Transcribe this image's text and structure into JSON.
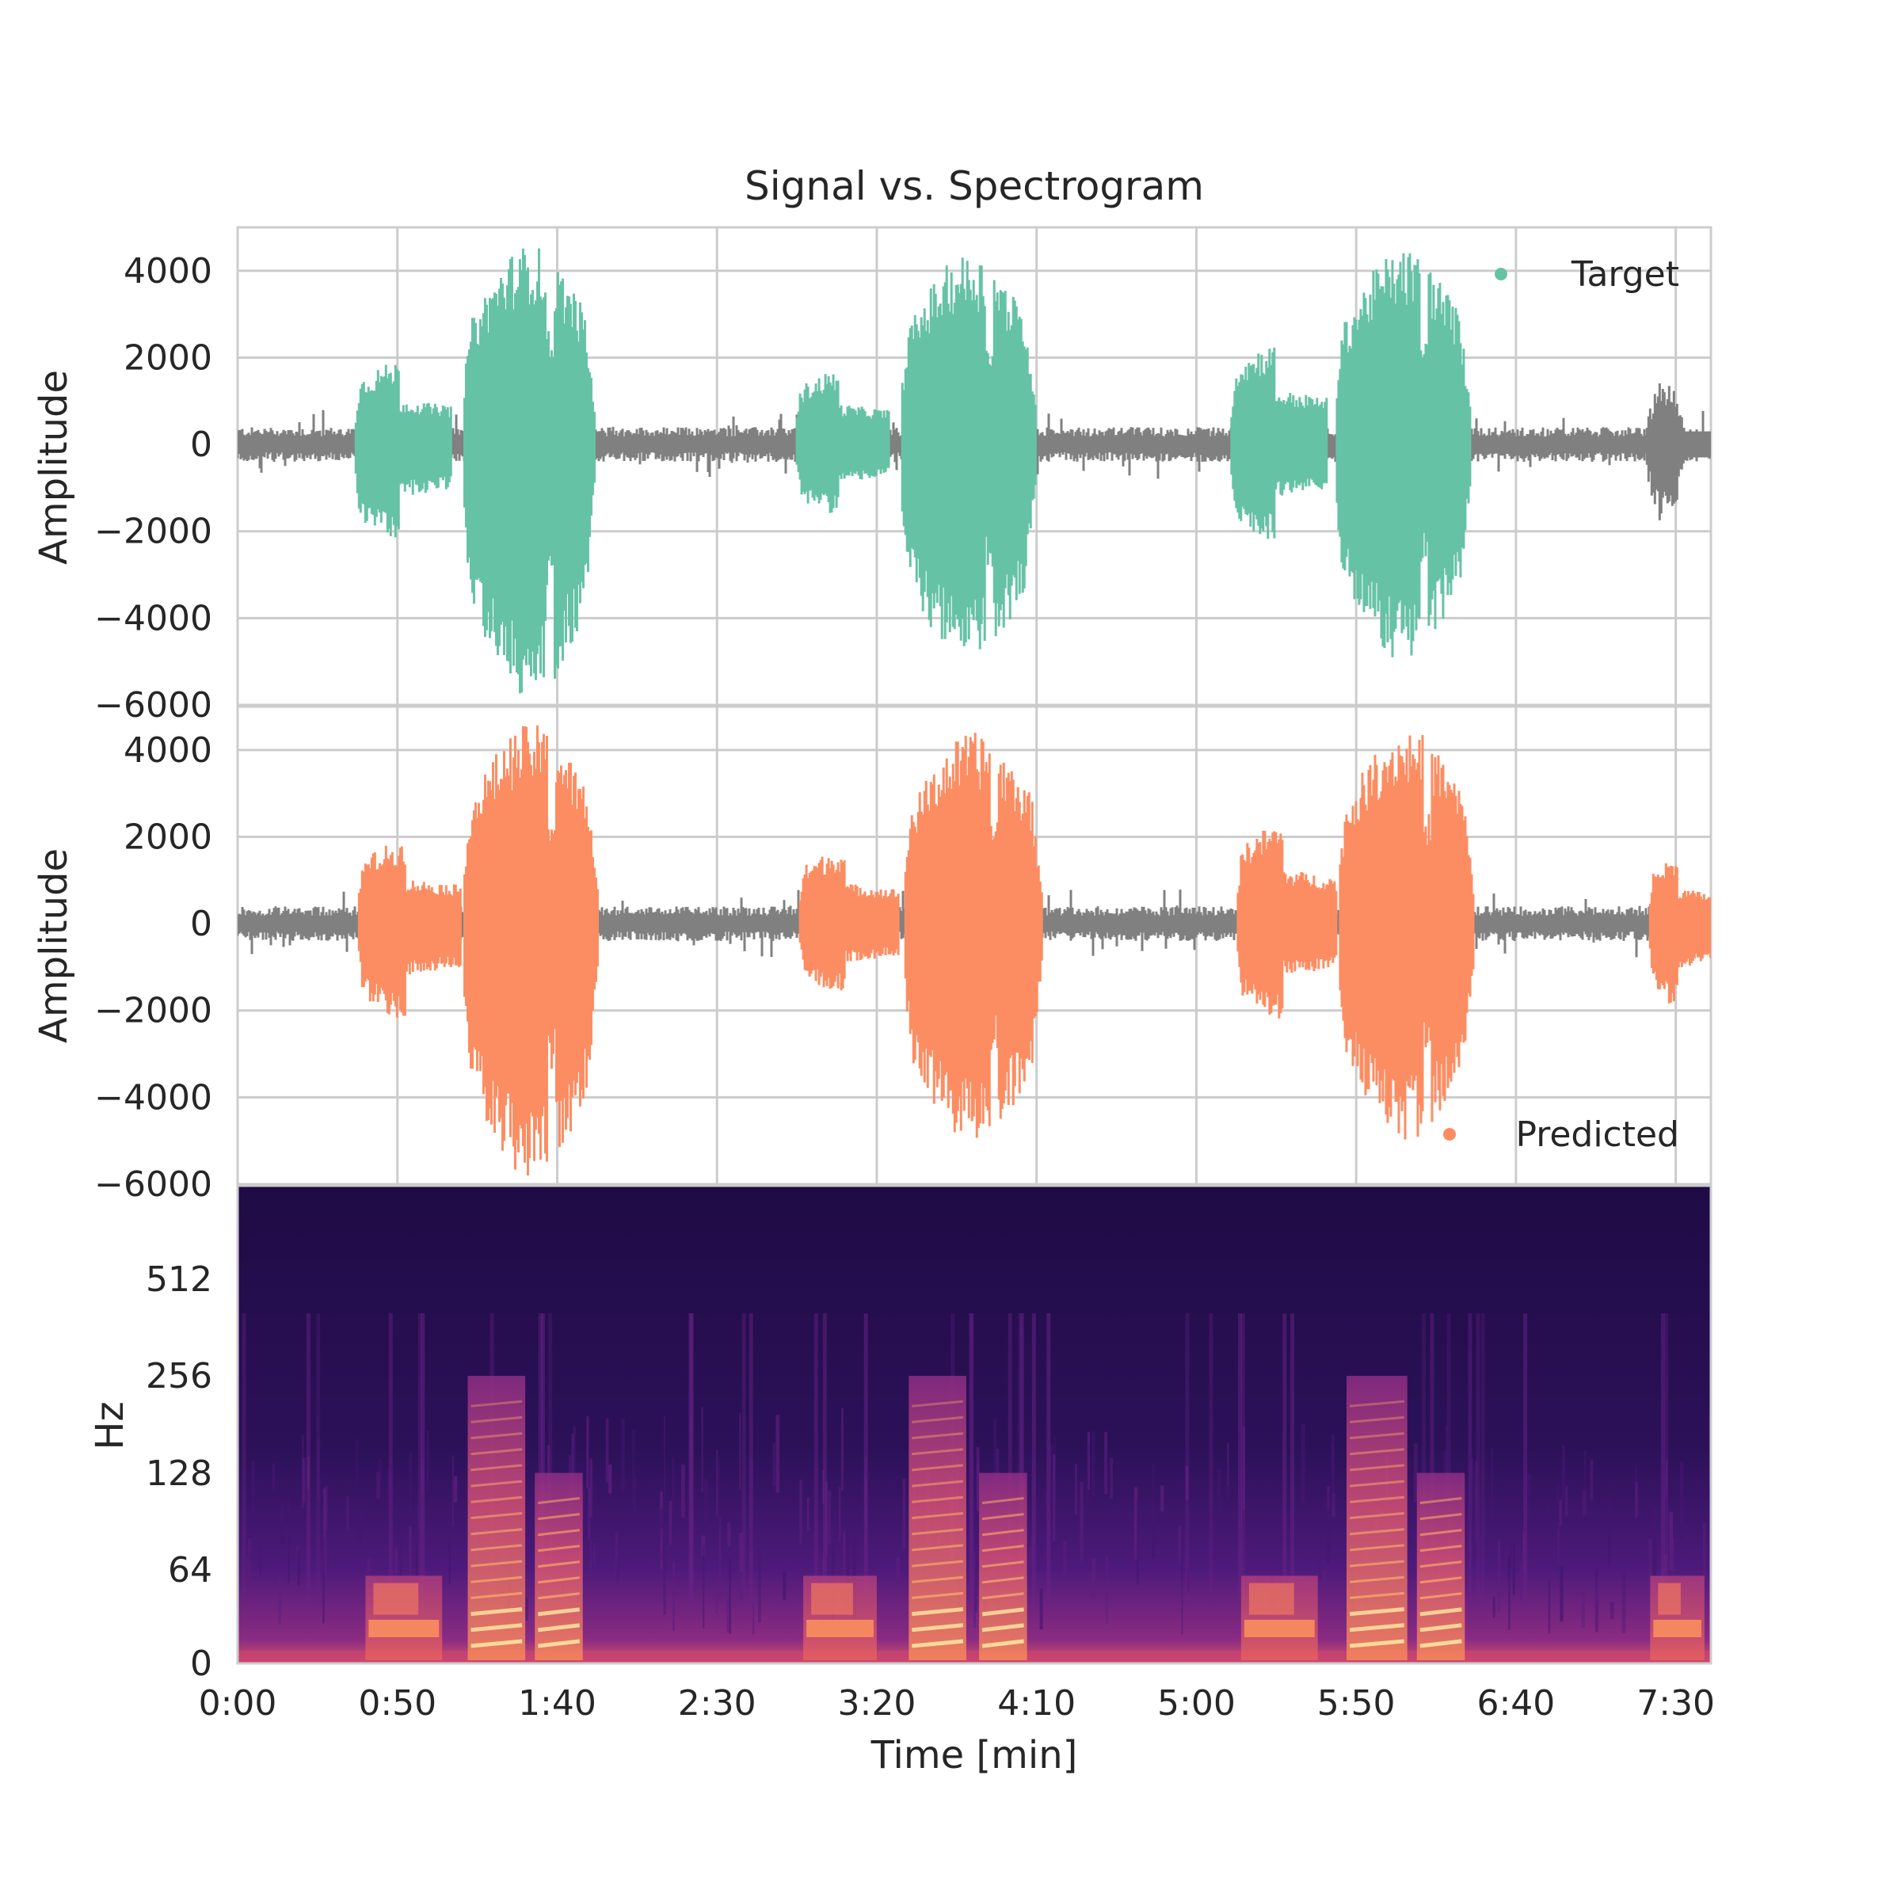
{
  "chart_data": {
    "type": "line",
    "title": "Signal vs. Spectrogram",
    "xlabel": "Time [min]",
    "x_ticks": [
      "0:00",
      "0:50",
      "1:40",
      "2:30",
      "3:20",
      "4:10",
      "5:00",
      "5:50",
      "6:40",
      "7:30"
    ],
    "xlim_seconds": [
      0,
      461
    ],
    "grid": true,
    "panels": [
      {
        "type": "line",
        "ylabel": "Amplitude",
        "ylim": [
          -6000,
          5000
        ],
        "y_ticks": [
          4000,
          2000,
          0,
          -2000,
          -4000,
          -6000
        ],
        "legend": {
          "label": "Target",
          "placement": "top-right",
          "color": "#66c2a5"
        },
        "background_color": "#808080",
        "highlight_color": "#66c2a5",
        "background_noise_amplitude": 400,
        "segments": [
          {
            "start": 37,
            "end": 67,
            "max": 1900,
            "min": -2200
          },
          {
            "start": 71,
            "end": 112,
            "max": 4600,
            "min": -5900
          },
          {
            "start": 175,
            "end": 204,
            "max": 1700,
            "min": -1600
          },
          {
            "start": 208,
            "end": 250,
            "max": 4400,
            "min": -5100
          },
          {
            "start": 311,
            "end": 341,
            "max": 2300,
            "min": -2200
          },
          {
            "start": 344,
            "end": 386,
            "max": 4500,
            "min": -5000
          }
        ],
        "tail_segment": {
          "start": 441,
          "end": 461,
          "max": 1500,
          "min": -1900
        }
      },
      {
        "type": "line",
        "ylabel": "Amplitude",
        "ylim": [
          -6000,
          5000
        ],
        "y_ticks": [
          4000,
          2000,
          0,
          -2000,
          -4000,
          -6000
        ],
        "legend": {
          "label": "Predicted",
          "placement": "bottom-right",
          "color": "#fc8d62"
        },
        "background_color": "#808080",
        "highlight_color": "#fc8d62",
        "background_noise_amplitude": 400,
        "segments": [
          {
            "start": 38,
            "end": 70,
            "max": 1900,
            "min": -2200
          },
          {
            "start": 71,
            "end": 113,
            "max": 4600,
            "min": -5900
          },
          {
            "start": 176,
            "end": 207,
            "max": 1700,
            "min": -1600
          },
          {
            "start": 209,
            "end": 252,
            "max": 4400,
            "min": -5100
          },
          {
            "start": 313,
            "end": 344,
            "max": 2300,
            "min": -2200
          },
          {
            "start": 345,
            "end": 387,
            "max": 4500,
            "min": -5000
          },
          {
            "start": 442,
            "end": 461,
            "max": 1500,
            "min": -1900
          }
        ]
      },
      {
        "type": "heatmap",
        "ylabel": "Hz",
        "y_ticks": [
          "512",
          "256",
          "128",
          "64",
          "0"
        ],
        "y_scale": "log",
        "colormap": "magma",
        "base_color": "#2a0f52",
        "voiced_regions": [
          {
            "start": 40,
            "end": 64,
            "top_hz": 60,
            "harmonics": false
          },
          {
            "start": 72,
            "end": 90,
            "top_hz": 256,
            "harmonics": true
          },
          {
            "start": 93,
            "end": 108,
            "top_hz": 128,
            "harmonics": true
          },
          {
            "start": 177,
            "end": 200,
            "top_hz": 60,
            "harmonics": false
          },
          {
            "start": 210,
            "end": 228,
            "top_hz": 256,
            "harmonics": true
          },
          {
            "start": 232,
            "end": 247,
            "top_hz": 128,
            "harmonics": true
          },
          {
            "start": 314,
            "end": 338,
            "top_hz": 60,
            "harmonics": false
          },
          {
            "start": 347,
            "end": 366,
            "top_hz": 256,
            "harmonics": true
          },
          {
            "start": 369,
            "end": 384,
            "top_hz": 128,
            "harmonics": true
          },
          {
            "start": 442,
            "end": 459,
            "top_hz": 60,
            "harmonics": false
          }
        ]
      }
    ]
  }
}
